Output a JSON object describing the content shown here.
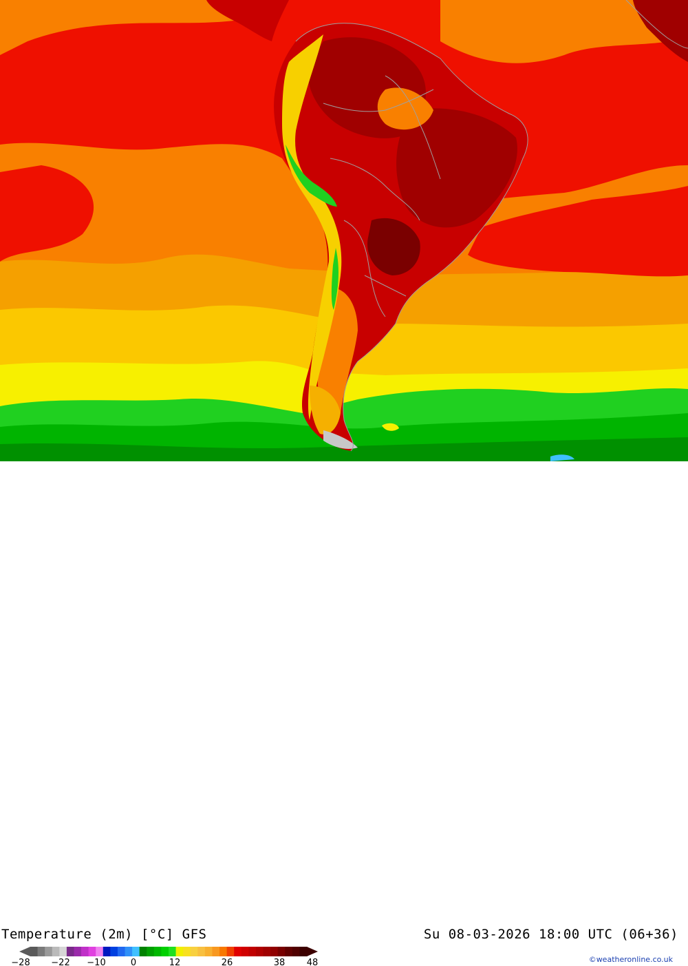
{
  "map": {
    "product": "Temperature (2m) [°C] GFS",
    "valid_time": "Su 08-03-2026 18:00 UTC (06+36)",
    "credit": "©weatheronline.co.uk",
    "colors": {
      "t_20": "#f5b000",
      "t_24": "#f98000",
      "t_28": "#ef1000",
      "t_32": "#c80000",
      "t_36": "#a00000",
      "t_40": "#7a0000",
      "t_16": "#fbd400",
      "t_14": "#f7f000",
      "t_12": "#b8e600",
      "t_8": "#00c800",
      "t_4": "#009a00",
      "borders": "#a0a0a0"
    }
  },
  "legend": {
    "tick_labels": [
      "−28",
      "−22",
      "−10",
      "0",
      "12",
      "26",
      "38",
      "48"
    ],
    "colors": [
      "#5a5a5a",
      "#7a7a7a",
      "#9a9a9a",
      "#bababa",
      "#d6d6d6",
      "#7a2a8a",
      "#9a2aaa",
      "#c030c8",
      "#e040e0",
      "#f080f0",
      "#0018c0",
      "#0040e0",
      "#2068f0",
      "#3090f8",
      "#40c0ff",
      "#008200",
      "#00a000",
      "#00b800",
      "#00d000",
      "#20e020",
      "#f0f000",
      "#f8e020",
      "#f8d040",
      "#f8c040",
      "#f8b030",
      "#f89820",
      "#f87800",
      "#f04000",
      "#e00000",
      "#d00000",
      "#c00000",
      "#b00000",
      "#a00000",
      "#900000",
      "#780000",
      "#600000",
      "#500000",
      "#3c0000"
    ]
  }
}
